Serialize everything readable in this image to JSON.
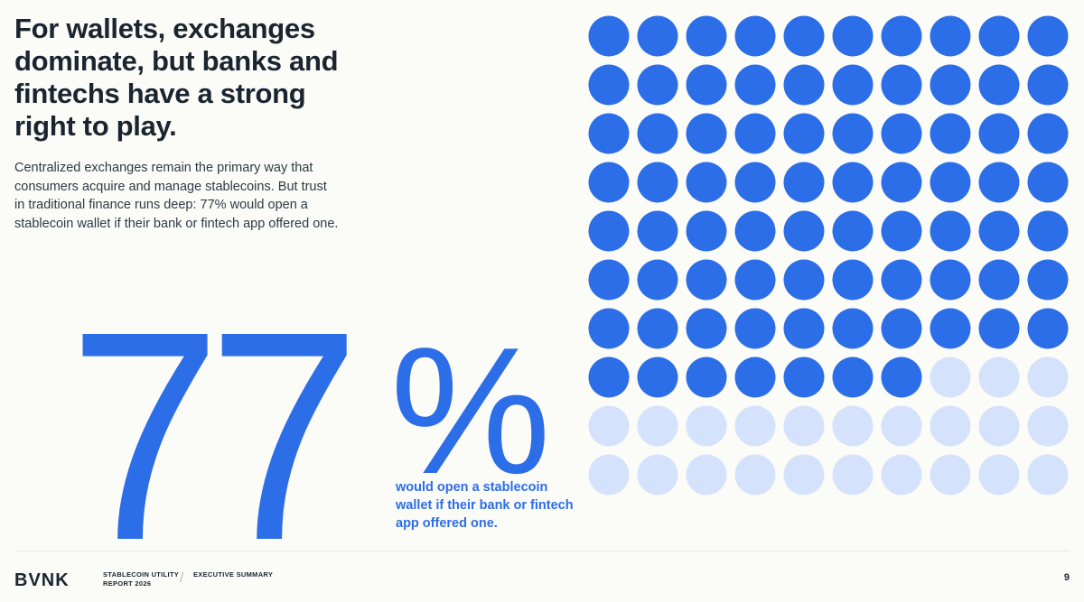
{
  "headline": "For wallets, exchanges dominate, but banks and fintechs have a strong right to play.",
  "intro": "Centralized exchanges remain the primary way that consumers acquire and manage stablecoins. But trust in traditional finance runs deep: 77% would open a stablecoin wallet if their bank or fintech app offered one.",
  "stat": {
    "number": "77",
    "percent_sign": "%",
    "caption": "would open a stablecoin wallet if their bank or fintech app offered one."
  },
  "chart_data": {
    "type": "waffle",
    "total": 100,
    "filled": 77,
    "rows": 10,
    "columns": 10,
    "filled_color": "#2c6ee8",
    "empty_color": "#d4e2fb"
  },
  "footer": {
    "brand": "BVNK",
    "report_line1": "STABLECOIN UTILITY",
    "report_line2": "REPORT 2026",
    "separator": "/",
    "section": "EXECUTIVE SUMMARY",
    "page_number": "9"
  }
}
